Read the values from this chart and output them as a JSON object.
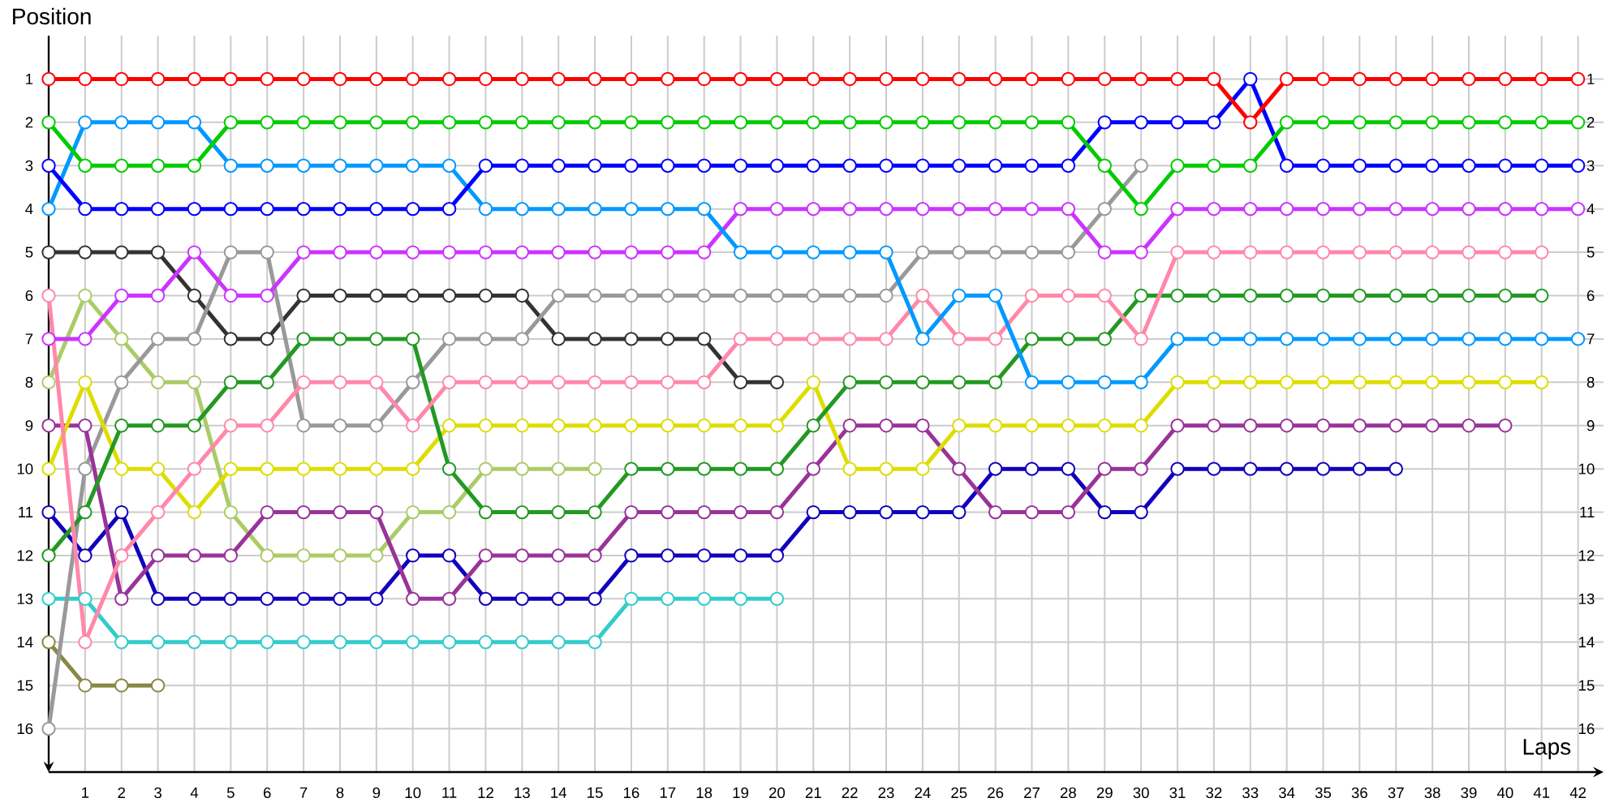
{
  "chart_data": {
    "type": "line",
    "xlabel": "Laps",
    "ylabel": "Position",
    "marker": "circle",
    "line_style": "solid",
    "grid": true,
    "x": [
      0,
      1,
      2,
      3,
      4,
      5,
      6,
      7,
      8,
      9,
      10,
      11,
      12,
      13,
      14,
      15,
      16,
      17,
      18,
      19,
      20,
      21,
      22,
      23,
      24,
      25,
      26,
      27,
      28,
      29,
      30,
      31,
      32,
      33,
      34,
      35,
      36,
      37,
      38,
      39,
      40,
      41,
      42
    ],
    "xlim": [
      0,
      42.7
    ],
    "ylim": [
      17,
      0
    ],
    "y2lim": [
      17,
      0
    ],
    "xticks": [
      {
        "value": 0,
        "label": null
      },
      1,
      2,
      3,
      4,
      5,
      6,
      7,
      8,
      9,
      10,
      11,
      12,
      13,
      14,
      15,
      16,
      17,
      18,
      19,
      20,
      21,
      22,
      23,
      24,
      25,
      26,
      27,
      28,
      29,
      30,
      31,
      32,
      33,
      34,
      35,
      36,
      37,
      38,
      39,
      40,
      41,
      42
    ],
    "yticks": [
      1,
      2,
      3,
      4,
      5,
      6,
      7,
      8,
      9,
      10,
      11,
      12,
      13,
      14,
      15,
      16
    ],
    "y2ticks": [
      1,
      2,
      3,
      4,
      5,
      6,
      7,
      8,
      9,
      10,
      11,
      12,
      13,
      14,
      15,
      16
    ],
    "series": [
      {
        "color": "#888844",
        "values": [
          14,
          15,
          15,
          15,
          null,
          null,
          null,
          null,
          null,
          null,
          null,
          null,
          null,
          null,
          null,
          null,
          null,
          null,
          null,
          null,
          null,
          null,
          null,
          null,
          null,
          null,
          null,
          null,
          null,
          null,
          null,
          null,
          null,
          null,
          null,
          null,
          null,
          null,
          null,
          null,
          null,
          null,
          null
        ]
      },
      {
        "color": "#33cccc",
        "values": [
          13,
          13,
          14,
          14,
          14,
          14,
          14,
          14,
          14,
          14,
          14,
          14,
          14,
          14,
          14,
          14,
          13,
          13,
          13,
          13,
          13,
          null,
          null,
          null,
          null,
          null,
          null,
          null,
          null,
          null,
          null,
          null,
          null,
          null,
          null,
          null,
          null,
          null,
          null,
          null,
          null,
          null,
          null
        ]
      },
      {
        "color": "#aacc66",
        "values": [
          8,
          6,
          7,
          8,
          8,
          11,
          12,
          12,
          12,
          12,
          11,
          11,
          10,
          10,
          10,
          10,
          null,
          null,
          null,
          null,
          null,
          null,
          null,
          null,
          null,
          null,
          null,
          null,
          null,
          null,
          null,
          null,
          null,
          null,
          null,
          null,
          null,
          null,
          null,
          null,
          null,
          null,
          null
        ]
      },
      {
        "color": "#333333",
        "values": [
          5,
          5,
          5,
          5,
          6,
          7,
          7,
          6,
          6,
          6,
          6,
          6,
          6,
          6,
          7,
          7,
          7,
          7,
          7,
          8,
          8,
          null,
          null,
          null,
          null,
          null,
          null,
          null,
          null,
          null,
          null,
          null,
          null,
          null,
          null,
          null,
          null,
          null,
          null,
          null,
          null,
          null,
          null
        ]
      },
      {
        "color": "#999999",
        "values": [
          16,
          10,
          8,
          7,
          7,
          5,
          5,
          9,
          9,
          9,
          8,
          7,
          7,
          7,
          6,
          6,
          6,
          6,
          6,
          6,
          6,
          6,
          6,
          6,
          5,
          5,
          5,
          5,
          5,
          4,
          3,
          null,
          null,
          null,
          null,
          null,
          null,
          null,
          null,
          null,
          null,
          null,
          null
        ]
      },
      {
        "color": "#1100bb",
        "values": [
          11,
          12,
          11,
          13,
          13,
          13,
          13,
          13,
          13,
          13,
          12,
          12,
          13,
          13,
          13,
          13,
          12,
          12,
          12,
          12,
          12,
          11,
          11,
          11,
          11,
          11,
          10,
          10,
          10,
          11,
          11,
          10,
          10,
          10,
          10,
          10,
          10,
          10,
          null,
          null,
          null,
          null,
          null
        ]
      },
      {
        "color": "#993399",
        "values": [
          9,
          9,
          13,
          12,
          12,
          12,
          11,
          11,
          11,
          11,
          13,
          13,
          12,
          12,
          12,
          12,
          11,
          11,
          11,
          11,
          11,
          10,
          9,
          9,
          9,
          10,
          11,
          11,
          11,
          10,
          10,
          9,
          9,
          9,
          9,
          9,
          9,
          9,
          9,
          9,
          9,
          null,
          null
        ]
      },
      {
        "color": "#dddd00",
        "values": [
          10,
          8,
          10,
          10,
          11,
          10,
          10,
          10,
          10,
          10,
          10,
          9,
          9,
          9,
          9,
          9,
          9,
          9,
          9,
          9,
          9,
          8,
          10,
          10,
          10,
          9,
          9,
          9,
          9,
          9,
          9,
          8,
          8,
          8,
          8,
          8,
          8,
          8,
          8,
          8,
          8,
          8,
          null
        ]
      },
      {
        "color": "#229922",
        "values": [
          12,
          11,
          9,
          9,
          9,
          8,
          8,
          7,
          7,
          7,
          7,
          10,
          11,
          11,
          11,
          11,
          10,
          10,
          10,
          10,
          10,
          9,
          8,
          8,
          8,
          8,
          8,
          7,
          7,
          7,
          6,
          6,
          6,
          6,
          6,
          6,
          6,
          6,
          6,
          6,
          6,
          6,
          null
        ]
      },
      {
        "color": "#ff88aa",
        "values": [
          6,
          14,
          12,
          11,
          10,
          9,
          9,
          8,
          8,
          8,
          9,
          8,
          8,
          8,
          8,
          8,
          8,
          8,
          8,
          7,
          7,
          7,
          7,
          7,
          6,
          7,
          7,
          6,
          6,
          6,
          7,
          5,
          5,
          5,
          5,
          5,
          5,
          5,
          5,
          5,
          5,
          5,
          null
        ]
      },
      {
        "color": "#cc33ff",
        "values": [
          7,
          7,
          6,
          6,
          5,
          6,
          6,
          5,
          5,
          5,
          5,
          5,
          5,
          5,
          5,
          5,
          5,
          5,
          5,
          4,
          4,
          4,
          4,
          4,
          4,
          4,
          4,
          4,
          4,
          5,
          5,
          4,
          4,
          4,
          4,
          4,
          4,
          4,
          4,
          4,
          4,
          4,
          4
        ]
      },
      {
        "color": "#0099ff",
        "values": [
          4,
          2,
          2,
          2,
          2,
          3,
          3,
          3,
          3,
          3,
          3,
          3,
          4,
          4,
          4,
          4,
          4,
          4,
          4,
          5,
          5,
          5,
          5,
          5,
          7,
          6,
          6,
          8,
          8,
          8,
          8,
          7,
          7,
          7,
          7,
          7,
          7,
          7,
          7,
          7,
          7,
          7,
          7
        ]
      },
      {
        "color": "#0000ff",
        "values": [
          3,
          4,
          4,
          4,
          4,
          4,
          4,
          4,
          4,
          4,
          4,
          4,
          3,
          3,
          3,
          3,
          3,
          3,
          3,
          3,
          3,
          3,
          3,
          3,
          3,
          3,
          3,
          3,
          3,
          2,
          2,
          2,
          2,
          1,
          3,
          3,
          3,
          3,
          3,
          3,
          3,
          3,
          3
        ]
      },
      {
        "color": "#00cc00",
        "values": [
          2,
          3,
          3,
          3,
          3,
          2,
          2,
          2,
          2,
          2,
          2,
          2,
          2,
          2,
          2,
          2,
          2,
          2,
          2,
          2,
          2,
          2,
          2,
          2,
          2,
          2,
          2,
          2,
          2,
          3,
          4,
          3,
          3,
          3,
          2,
          2,
          2,
          2,
          2,
          2,
          2,
          2,
          2
        ]
      },
      {
        "color": "#ff0000",
        "values": [
          1,
          1,
          1,
          1,
          1,
          1,
          1,
          1,
          1,
          1,
          1,
          1,
          1,
          1,
          1,
          1,
          1,
          1,
          1,
          1,
          1,
          1,
          1,
          1,
          1,
          1,
          1,
          1,
          1,
          1,
          1,
          1,
          1,
          2,
          1,
          1,
          1,
          1,
          1,
          1,
          1,
          1,
          1
        ]
      }
    ]
  }
}
